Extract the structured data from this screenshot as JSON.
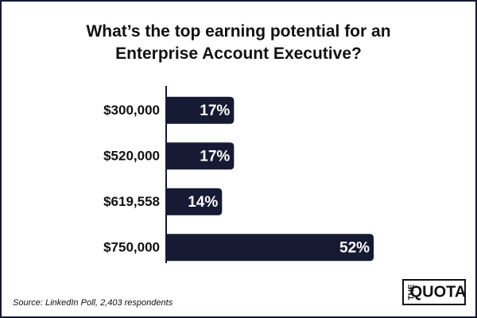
{
  "chart_data": {
    "type": "bar",
    "orientation": "horizontal",
    "title": "What’s the top earning potential for an Enterprise Account Executive?",
    "categories": [
      "$300,000",
      "$520,000",
      "$619,558",
      "$750,000"
    ],
    "values": [
      17,
      17,
      14,
      52
    ],
    "value_labels": [
      "17%",
      "17%",
      "14%",
      "52%"
    ],
    "color": "#161a33",
    "source": "Source: LinkedIn Poll, 2,403 respondents",
    "logo": {
      "top": "THE",
      "main": "QUOTA"
    }
  }
}
